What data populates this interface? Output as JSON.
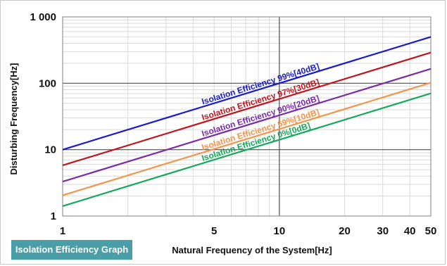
{
  "colors": {
    "blue": "#1a1acb",
    "red": "#c0141e",
    "purple": "#7a2aa6",
    "orange": "#f4944a",
    "green": "#14a85a",
    "badge": "#4a9ea8"
  },
  "badge_label": "Isolation Efficiency Graph",
  "chart_data": {
    "type": "line",
    "title": "",
    "xlabel": "Natural Frequency of the System[Hz]",
    "ylabel": "Disturbing Frequency[Hz]",
    "x_scale": "log",
    "y_scale": "log",
    "xlim": [
      1,
      50
    ],
    "ylim": [
      1,
      1000
    ],
    "grid": true,
    "x_ticks": [
      {
        "value": 1,
        "label": "1"
      },
      {
        "value": 5,
        "label": "5"
      },
      {
        "value": 10,
        "label": "10"
      },
      {
        "value": 20,
        "label": "20"
      },
      {
        "value": 30,
        "label": "30"
      },
      {
        "value": 40,
        "label": "40"
      },
      {
        "value": 50,
        "label": "50"
      }
    ],
    "y_ticks": [
      {
        "value": 1,
        "label": "1"
      },
      {
        "value": 10,
        "label": "10"
      },
      {
        "value": 100,
        "label": "100"
      },
      {
        "value": 1000,
        "label": "1 000"
      }
    ],
    "series": [
      {
        "name": "Isolation Efficiency 99%[40dB]",
        "color": "#1a1acb",
        "x": [
          1,
          50
        ],
        "y": [
          10,
          500
        ]
      },
      {
        "name": "Isolation Efficiency 97%[30dB]",
        "color": "#c0141e",
        "x": [
          1,
          50
        ],
        "y": [
          5.8,
          290
        ]
      },
      {
        "name": "Isolation Efficiency 90%[20dB]",
        "color": "#7a2aa6",
        "x": [
          1,
          50
        ],
        "y": [
          3.3,
          165
        ]
      },
      {
        "name": "Isolation Efficiency 69%[10dB]",
        "color": "#f4944a",
        "x": [
          1,
          50
        ],
        "y": [
          2.05,
          102
        ]
      },
      {
        "name": "Isolation Efficiency 0%[0dB]",
        "color": "#14a85a",
        "x": [
          1,
          50
        ],
        "y": [
          1.41,
          70.5
        ]
      }
    ]
  }
}
